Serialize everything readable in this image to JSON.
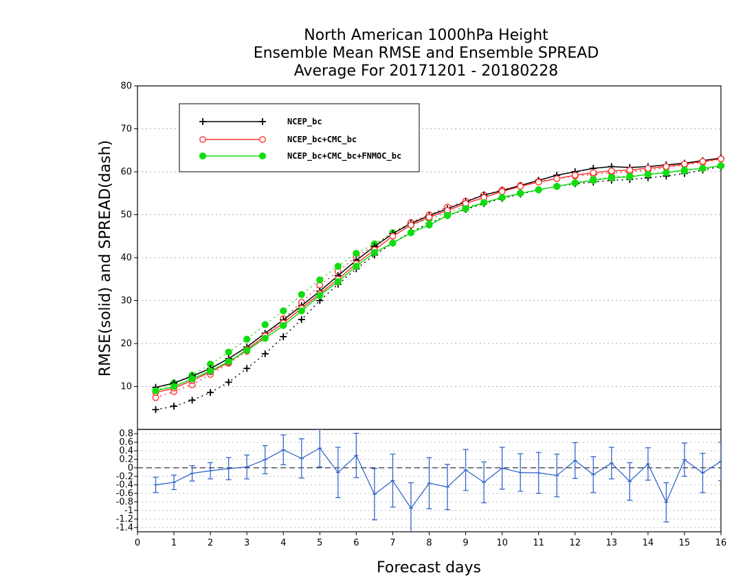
{
  "figure": {
    "title_lines": [
      "North American 1000hPa Height",
      "Ensemble Mean RMSE and Ensemble SPREAD",
      "Average For 20171201 - 20180228"
    ],
    "ylabel": "RMSE(solid) and SPREAD(dash)",
    "xlabel": "Forecast days"
  },
  "chart_data": [
    {
      "type": "line",
      "panel": "main",
      "xlim": [
        0,
        16
      ],
      "ylim": [
        0,
        80
      ],
      "x_ticks": [
        0,
        1,
        2,
        3,
        4,
        5,
        6,
        7,
        8,
        9,
        10,
        11,
        12,
        13,
        14,
        15,
        16
      ],
      "y_ticks": [
        10,
        20,
        30,
        40,
        50,
        60,
        70,
        80
      ],
      "grid": true,
      "legend_position": "top-left",
      "x": [
        0.5,
        1,
        1.5,
        2,
        2.5,
        3,
        3.5,
        4,
        4.5,
        5,
        5.5,
        6,
        6.5,
        7,
        7.5,
        8,
        8.5,
        9,
        9.5,
        10,
        10.5,
        11,
        11.5,
        12,
        12.5,
        13,
        13.5,
        14,
        14.5,
        15,
        15.5,
        16
      ],
      "series": [
        {
          "name": "NCEP_bc",
          "color": "#000000",
          "marker": "plus",
          "rmse": [
            9.8,
            10.8,
            12.4,
            14.2,
            16.5,
            19.2,
            22.4,
            25.5,
            28.8,
            32.2,
            35.8,
            39.4,
            42.6,
            45.6,
            48.0,
            49.8,
            51.4,
            53.0,
            54.6,
            55.6,
            56.8,
            58.0,
            59.2,
            60.0,
            60.8,
            61.2,
            61.0,
            61.2,
            61.6,
            62.0,
            62.6,
            63.2
          ],
          "spread": [
            4.6,
            5.4,
            6.8,
            8.6,
            11.0,
            14.2,
            17.6,
            21.6,
            25.6,
            30.0,
            33.8,
            37.4,
            40.6,
            43.4,
            46.0,
            48.0,
            49.8,
            51.2,
            52.6,
            53.8,
            54.8,
            55.8,
            56.6,
            57.2,
            57.6,
            58.0,
            58.2,
            58.6,
            59.0,
            59.6,
            60.4,
            61.2
          ]
        },
        {
          "name": "NCEP_bc+CMC_bc",
          "color": "#ff3333",
          "marker": "open-circle",
          "rmse": [
            8.6,
            9.6,
            11.4,
            13.4,
            15.6,
            18.6,
            21.8,
            24.8,
            28.2,
            31.6,
            35.0,
            38.6,
            41.8,
            45.0,
            47.6,
            49.4,
            51.0,
            52.6,
            54.0,
            55.4,
            56.6,
            57.6,
            58.4,
            59.2,
            59.8,
            60.2,
            60.4,
            60.8,
            61.2,
            61.8,
            62.4,
            63.0
          ],
          "spread": [
            7.4,
            8.8,
            10.4,
            12.8,
            15.4,
            18.2,
            21.6,
            25.8,
            29.6,
            33.6,
            36.8,
            40.2,
            42.8,
            45.8,
            48.2,
            50.0,
            51.8,
            53.2,
            54.6,
            55.8,
            56.8,
            57.8,
            58.4,
            59.0,
            59.4,
            59.8,
            60.0,
            60.4,
            61.0,
            61.6,
            62.2,
            63.0
          ]
        },
        {
          "name": "NCEP_bc+CMC_bc+FNMOC_bc",
          "color": "#11dd11",
          "marker": "filled-circle",
          "rmse": [
            9.0,
            10.0,
            11.8,
            13.6,
            15.8,
            18.4,
            21.2,
            24.2,
            27.6,
            31.2,
            34.4,
            38.0,
            41.2,
            43.4,
            45.8,
            47.6,
            49.8,
            51.4,
            52.8,
            54.0,
            55.0,
            55.8,
            56.6,
            57.4,
            58.0,
            58.6,
            58.8,
            59.4,
            59.8,
            60.4,
            60.8,
            61.4
          ],
          "spread": [
            9.0,
            10.8,
            12.6,
            15.2,
            18.0,
            21.0,
            24.4,
            27.6,
            31.4,
            34.8,
            38.0,
            41.0,
            43.2,
            45.8,
            47.6,
            49.0,
            50.6,
            51.8,
            52.8,
            54.0,
            55.0,
            55.8,
            56.6,
            57.4,
            58.2,
            58.8,
            59.0,
            59.4,
            59.8,
            60.2,
            60.8,
            61.4
          ]
        }
      ]
    },
    {
      "type": "line",
      "panel": "difference",
      "color": "#3366cc",
      "xlim": [
        0,
        16
      ],
      "ylim": [
        -1.5,
        0.9
      ],
      "x_ticks": [
        0,
        1,
        2,
        3,
        4,
        5,
        6,
        7,
        8,
        9,
        10,
        11,
        12,
        13,
        14,
        15,
        16
      ],
      "y_ticks": [
        -1.4,
        -1.2,
        -1,
        -0.8,
        -0.6,
        -0.4,
        -0.2,
        0,
        0.2,
        0.4,
        0.6,
        0.8
      ],
      "y_tick_labels": [
        "-1.4",
        "-1.2",
        "-1",
        "-0.8",
        "-0.6",
        "-0.4",
        "-0.2",
        "0",
        "0.2",
        "0.4",
        "0.6",
        "0.8"
      ],
      "grid": true,
      "zero_line": true,
      "x": [
        0.5,
        1,
        1.5,
        2,
        2.5,
        3,
        3.5,
        4,
        4.5,
        5,
        5.5,
        6,
        6.5,
        7,
        7.5,
        8,
        8.5,
        9,
        9.5,
        10,
        10.5,
        11,
        11.5,
        12,
        12.5,
        13,
        13.5,
        14,
        14.5,
        15,
        15.5,
        16
      ],
      "values": [
        -0.4,
        -0.34,
        -0.13,
        -0.07,
        -0.02,
        0.02,
        0.19,
        0.42,
        0.22,
        0.46,
        -0.11,
        0.29,
        -0.62,
        -0.3,
        -0.95,
        -0.36,
        -0.45,
        -0.05,
        -0.34,
        -0.01,
        -0.11,
        -0.12,
        -0.18,
        0.17,
        -0.16,
        0.11,
        -0.32,
        0.09,
        -0.81,
        0.19,
        -0.12,
        0.15
      ],
      "err_low": [
        -0.58,
        -0.51,
        -0.31,
        -0.26,
        -0.28,
        -0.26,
        -0.14,
        0.07,
        -0.24,
        0.02,
        -0.7,
        -0.23,
        -1.22,
        -0.92,
        -1.55,
        -0.96,
        -0.98,
        -0.53,
        -0.82,
        -0.5,
        -0.55,
        -0.6,
        -0.68,
        -0.25,
        -0.58,
        -0.26,
        -0.76,
        -0.29,
        -1.27,
        -0.2,
        -0.58,
        -0.3
      ],
      "err_high": [
        -0.22,
        -0.17,
        0.05,
        0.12,
        0.24,
        0.3,
        0.52,
        0.77,
        0.68,
        0.9,
        0.48,
        0.81,
        -0.02,
        0.32,
        -0.35,
        0.24,
        0.08,
        0.43,
        0.14,
        0.48,
        0.33,
        0.36,
        0.32,
        0.59,
        0.26,
        0.48,
        0.12,
        0.47,
        -0.35,
        0.58,
        0.34,
        0.6
      ]
    }
  ]
}
